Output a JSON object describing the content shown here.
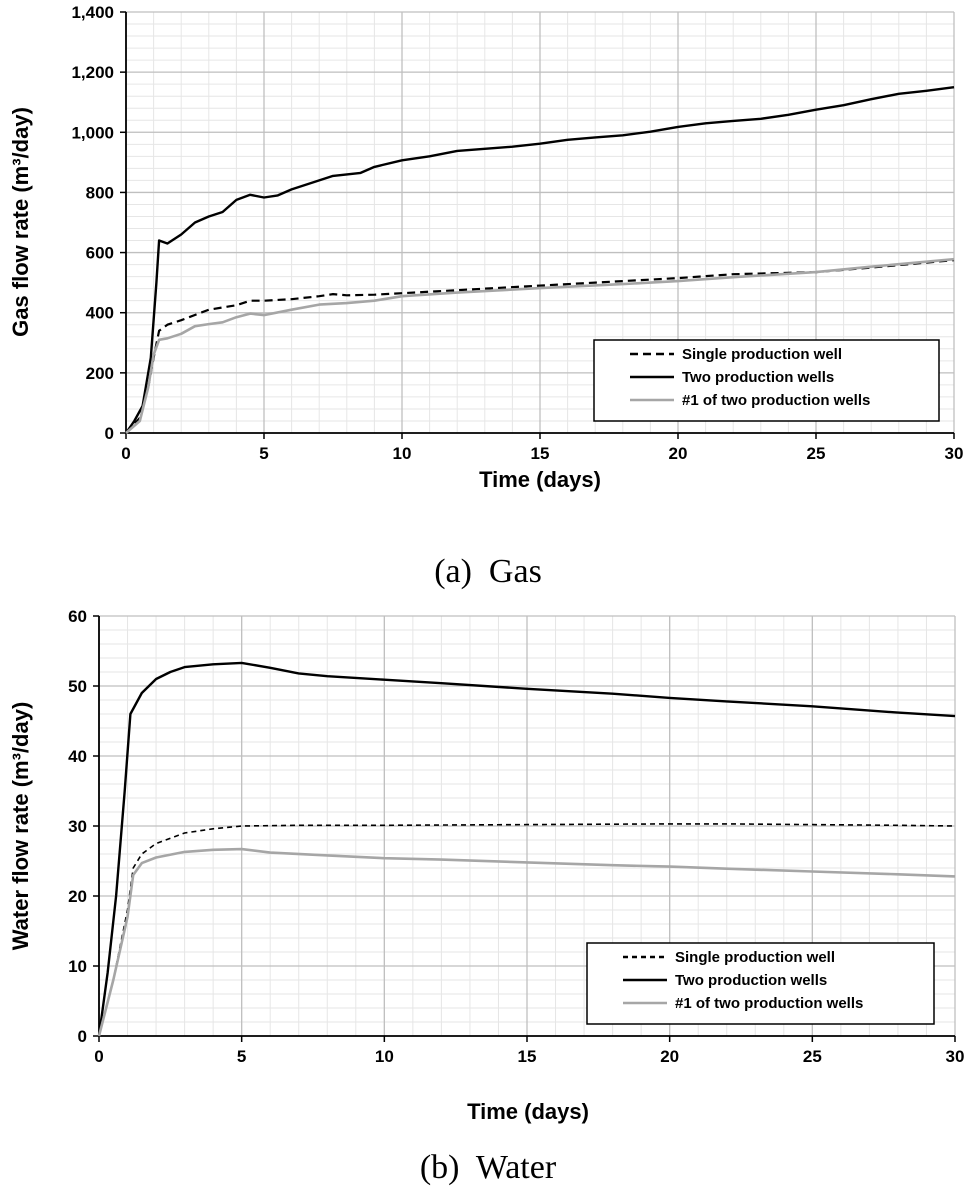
{
  "chart_data": [
    {
      "type": "line",
      "caption": "(a)  Gas",
      "xlabel": "Time (days)",
      "ylabel": "Gas flow rate (m³/day)",
      "xlim": [
        0,
        30
      ],
      "ylim": [
        0,
        1400
      ],
      "x_ticks": [
        "0",
        "5",
        "10",
        "15",
        "20",
        "25",
        "30"
      ],
      "y_ticks": [
        "0",
        "200",
        "400",
        "600",
        "800",
        "1,000",
        "1,200",
        "1,400"
      ],
      "grid": true,
      "legend_position": "bottom-right",
      "series": [
        {
          "name": "Single production well",
          "style": "dashed",
          "color": "#000000",
          "points": [
            [
              0,
              0
            ],
            [
              0.5,
              50
            ],
            [
              0.8,
              150
            ],
            [
              1.0,
              250
            ],
            [
              1.2,
              340
            ],
            [
              1.5,
              360
            ],
            [
              2,
              375
            ],
            [
              3,
              410
            ],
            [
              4,
              425
            ],
            [
              4.5,
              440
            ],
            [
              5,
              440
            ],
            [
              6,
              445
            ],
            [
              7,
              455
            ],
            [
              7.5,
              462
            ],
            [
              8,
              458
            ],
            [
              9,
              460
            ],
            [
              10,
              465
            ],
            [
              11,
              470
            ],
            [
              12,
              475
            ],
            [
              15,
              490
            ],
            [
              17,
              500
            ],
            [
              20,
              515
            ],
            [
              22,
              528
            ],
            [
              25,
              535
            ],
            [
              27,
              550
            ],
            [
              30,
              575
            ]
          ]
        },
        {
          "name": "Two production wells",
          "style": "solid",
          "color": "#000000",
          "points": [
            [
              0,
              0
            ],
            [
              0.3,
              40
            ],
            [
              0.6,
              90
            ],
            [
              0.9,
              250
            ],
            [
              1.1,
              500
            ],
            [
              1.2,
              640
            ],
            [
              1.5,
              630
            ],
            [
              2,
              660
            ],
            [
              2.5,
              700
            ],
            [
              3,
              720
            ],
            [
              3.5,
              735
            ],
            [
              4,
              775
            ],
            [
              4.5,
              792
            ],
            [
              5,
              783
            ],
            [
              5.5,
              790
            ],
            [
              6,
              810
            ],
            [
              7,
              840
            ],
            [
              7.5,
              855
            ],
            [
              8,
              860
            ],
            [
              8.5,
              865
            ],
            [
              9,
              885
            ],
            [
              10,
              907
            ],
            [
              11,
              920
            ],
            [
              12,
              938
            ],
            [
              13,
              945
            ],
            [
              14,
              952
            ],
            [
              15,
              962
            ],
            [
              16,
              975
            ],
            [
              17,
              983
            ],
            [
              18,
              990
            ],
            [
              19,
              1002
            ],
            [
              20,
              1018
            ],
            [
              21,
              1030
            ],
            [
              22,
              1038
            ],
            [
              23,
              1045
            ],
            [
              24,
              1058
            ],
            [
              25,
              1075
            ],
            [
              26,
              1090
            ],
            [
              27,
              1110
            ],
            [
              28,
              1128
            ],
            [
              29,
              1138
            ],
            [
              30,
              1150
            ]
          ]
        },
        {
          "name": "#1 of two production wells",
          "style": "solid",
          "color": "#a6a6a6",
          "points": [
            [
              0,
              0
            ],
            [
              0.5,
              40
            ],
            [
              0.8,
              150
            ],
            [
              1.0,
              260
            ],
            [
              1.2,
              310
            ],
            [
              1.5,
              315
            ],
            [
              2,
              330
            ],
            [
              2.5,
              355
            ],
            [
              3,
              362
            ],
            [
              3.5,
              368
            ],
            [
              4,
              385
            ],
            [
              4.5,
              397
            ],
            [
              5,
              392
            ],
            [
              6,
              410
            ],
            [
              7,
              427
            ],
            [
              8,
              432
            ],
            [
              9,
              440
            ],
            [
              10,
              455
            ],
            [
              12,
              467
            ],
            [
              15,
              482
            ],
            [
              18,
              495
            ],
            [
              20,
              505
            ],
            [
              22,
              518
            ],
            [
              25,
              535
            ],
            [
              27,
              553
            ],
            [
              30,
              578
            ]
          ]
        }
      ]
    },
    {
      "type": "line",
      "caption": "(b)  Water",
      "xlabel": "Time (days)",
      "ylabel": "Water flow rate (m³/day)",
      "xlim": [
        0,
        30
      ],
      "ylim": [
        0,
        60
      ],
      "x_ticks": [
        "0",
        "5",
        "10",
        "15",
        "20",
        "25",
        "30"
      ],
      "y_ticks": [
        "0",
        "10",
        "20",
        "30",
        "40",
        "50",
        "60"
      ],
      "grid": true,
      "legend_position": "bottom-right",
      "series": [
        {
          "name": "Single production well",
          "style": "dashed",
          "color": "#000000",
          "points": [
            [
              0,
              0
            ],
            [
              0.5,
              8
            ],
            [
              1.0,
              18
            ],
            [
              1.2,
              24
            ],
            [
              1.5,
              26
            ],
            [
              2,
              27.5
            ],
            [
              3,
              29
            ],
            [
              4,
              29.6
            ],
            [
              5,
              30
            ],
            [
              7,
              30.1
            ],
            [
              10,
              30.1
            ],
            [
              15,
              30.2
            ],
            [
              20,
              30.3
            ],
            [
              22,
              30.3
            ],
            [
              25,
              30.2
            ],
            [
              28,
              30.1
            ],
            [
              30,
              30
            ]
          ]
        },
        {
          "name": "Two production wells",
          "style": "solid",
          "color": "#000000",
          "points": [
            [
              0,
              0
            ],
            [
              0.3,
              9
            ],
            [
              0.6,
              20
            ],
            [
              0.9,
              35
            ],
            [
              1.1,
              46
            ],
            [
              1.3,
              47.5
            ],
            [
              1.5,
              49
            ],
            [
              2,
              51
            ],
            [
              2.5,
              52
            ],
            [
              3,
              52.7
            ],
            [
              4,
              53.1
            ],
            [
              5,
              53.3
            ],
            [
              6,
              52.6
            ],
            [
              7,
              51.8
            ],
            [
              8,
              51.4
            ],
            [
              10,
              50.9
            ],
            [
              12,
              50.4
            ],
            [
              15,
              49.6
            ],
            [
              18,
              48.9
            ],
            [
              20,
              48.3
            ],
            [
              22,
              47.8
            ],
            [
              25,
              47.1
            ],
            [
              28,
              46.2
            ],
            [
              30,
              45.7
            ]
          ]
        },
        {
          "name": "#1 of two production wells",
          "style": "solid",
          "color": "#a6a6a6",
          "points": [
            [
              0,
              0
            ],
            [
              0.5,
              8
            ],
            [
              1.0,
              17
            ],
            [
              1.2,
              23
            ],
            [
              1.5,
              24.7
            ],
            [
              2,
              25.5
            ],
            [
              3,
              26.3
            ],
            [
              4,
              26.6
            ],
            [
              5,
              26.7
            ],
            [
              6,
              26.2
            ],
            [
              8,
              25.8
            ],
            [
              10,
              25.4
            ],
            [
              12,
              25.2
            ],
            [
              15,
              24.8
            ],
            [
              18,
              24.4
            ],
            [
              20,
              24.2
            ],
            [
              22,
              23.9
            ],
            [
              25,
              23.5
            ],
            [
              28,
              23.1
            ],
            [
              30,
              22.8
            ]
          ]
        }
      ]
    }
  ]
}
